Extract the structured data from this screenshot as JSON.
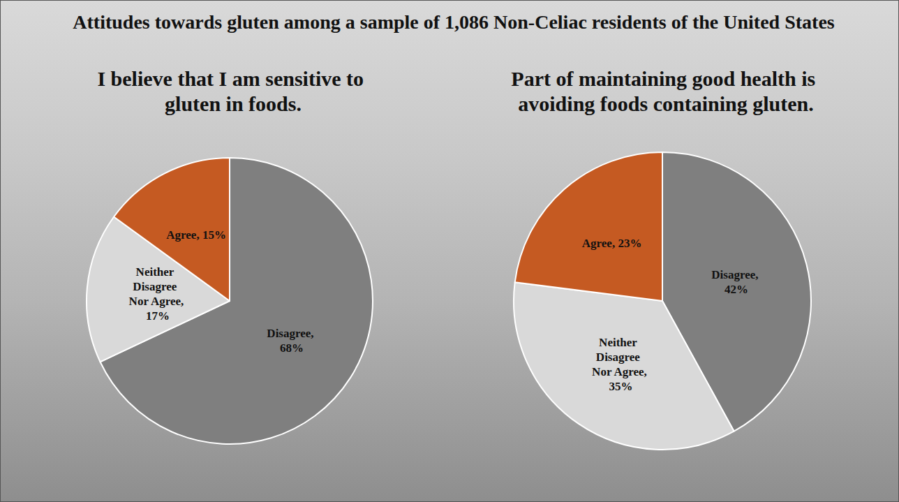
{
  "title": "Attitudes towards gluten among a sample of 1,086 Non-Celiac residents of the United States",
  "chart_data": [
    {
      "type": "pie",
      "title": "I believe that I am sensitive to gluten in foods.",
      "categories": [
        "Disagree",
        "Neither Disagree Nor Agree",
        "Agree"
      ],
      "values": [
        68,
        17,
        15
      ],
      "value_labels": [
        "Disagree, 68%",
        "Neither Disagree Nor Agree, 17%",
        "Agree, 15%"
      ],
      "colors": [
        "#7f7f7f",
        "#d9d9d9",
        "#c55a22"
      ],
      "data_labels": true
    },
    {
      "type": "pie",
      "title": "Part of maintaining good health is avoiding foods containing gluten.",
      "categories": [
        "Disagree",
        "Neither Disagree Nor Agree",
        "Agree"
      ],
      "values": [
        42,
        35,
        23
      ],
      "value_labels": [
        "Disagree, 42%",
        "Neither Disagree Nor Agree, 35%",
        "Agree, 23%"
      ],
      "colors": [
        "#7f7f7f",
        "#d9d9d9",
        "#c55a22"
      ],
      "data_labels": true
    }
  ]
}
